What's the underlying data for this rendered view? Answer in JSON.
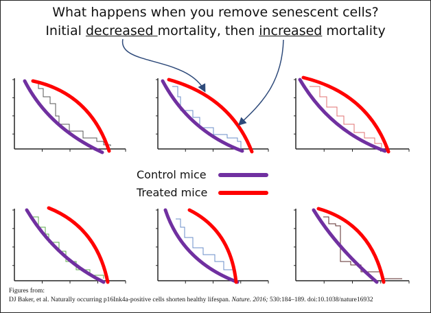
{
  "title": {
    "line1": "What happens when you remove senescent cells?",
    "line2_prefix": "Initial ",
    "line2_decreased": "decreased ",
    "line2_mid": "mortality, then ",
    "line2_increased": "increased",
    "line2_suffix": " mortality"
  },
  "legend": {
    "control": {
      "label": "Control mice",
      "color": "#7030a0"
    },
    "treated": {
      "label": "Treated mice",
      "color": "#ff0000"
    }
  },
  "citation": {
    "line1": "Figures from:",
    "authors": "DJ Baker, et al. Naturally occurring p16Ink4a-positive cells shorten healthy lifespan. ",
    "journal": "Nature. 2016;",
    "rest": " 530:184–189. doi:10.1038/nature16932"
  },
  "colors": {
    "arrow": "#2e4a7a",
    "control": "#7030a0",
    "treated": "#ff0000"
  }
}
